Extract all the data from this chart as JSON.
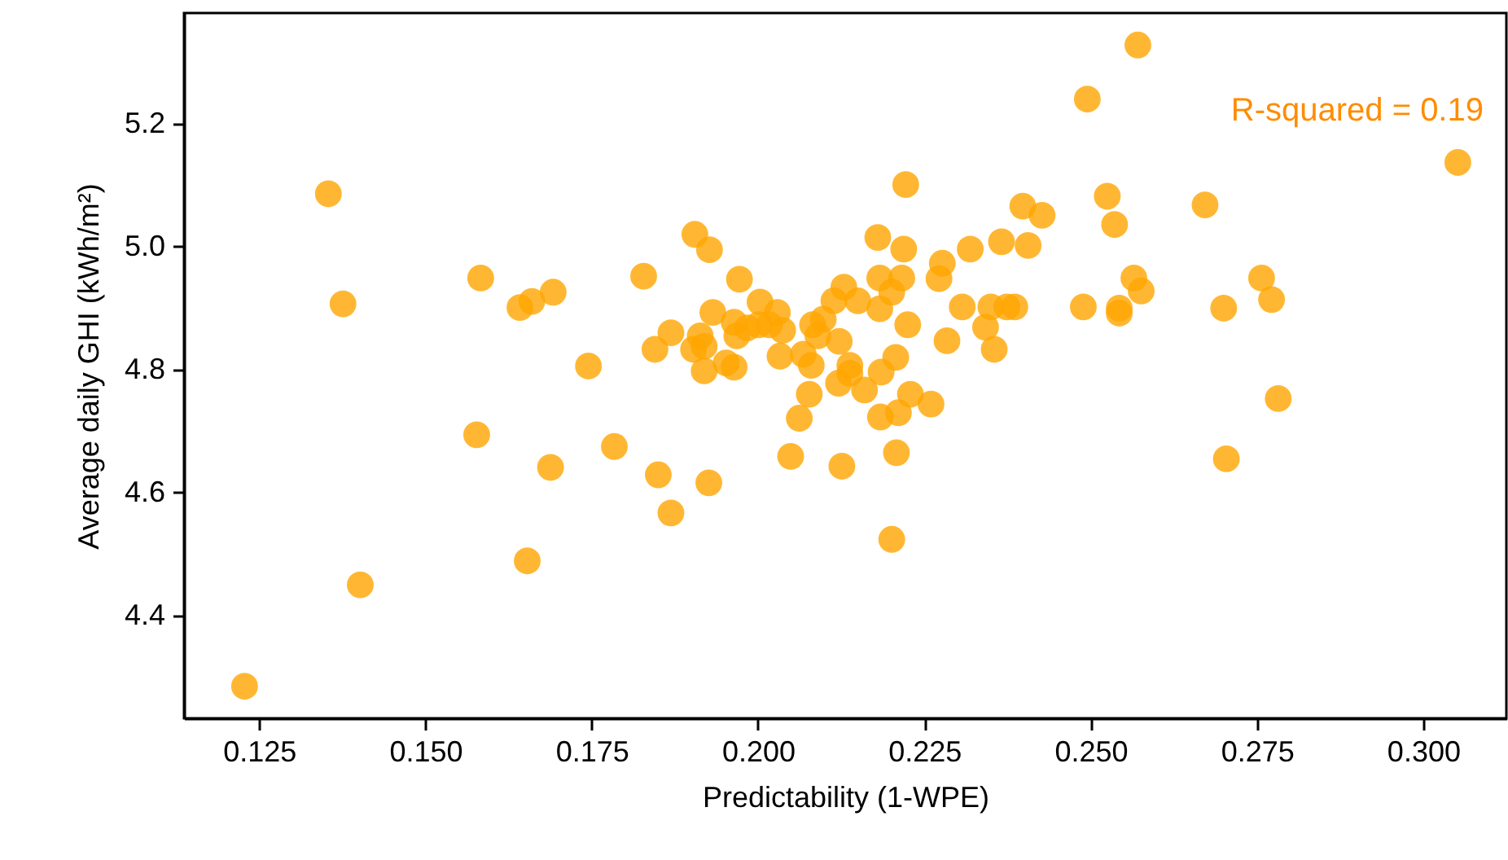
{
  "chart_data": {
    "type": "scatter",
    "xlabel": "Predictability (1-WPE)",
    "ylabel": "Average daily GHI (kWh/m²)",
    "annotations": [
      "R-squared = 0.19"
    ],
    "xlim": [
      0.1137,
      0.3125
    ],
    "ylim": [
      4.233,
      5.38
    ],
    "xticks": [
      0.125,
      {
        "value": 0.15,
        "label": "0.150"
      },
      0.175,
      {
        "value": 0.2,
        "label": "0.200"
      },
      0.225,
      {
        "value": 0.25,
        "label": "0.250"
      },
      0.275,
      {
        "value": 0.3,
        "label": "0.300"
      }
    ],
    "yticks": [
      4.4,
      4.6,
      4.8,
      {
        "value": 5,
        "label": "5.0"
      },
      5.2
    ],
    "grid": false,
    "marker": "circle",
    "series": [
      {
        "color": "#ffa500",
        "x": [
          0.1354,
          0.1376,
          0.1583,
          0.1642,
          0.166,
          0.1692,
          0.1828,
          0.1869,
          0.1845,
          0.1745,
          0.1577,
          0.1688,
          0.1784,
          0.185,
          0.1869,
          0.1653,
          0.1402,
          0.1228,
          0.1926,
          0.2049,
          0.2126,
          0.2208,
          0.2201,
          0.2062,
          0.2077,
          0.2121,
          0.216,
          0.2184,
          0.2211,
          0.2229,
          0.226,
          0.2207,
          0.2185,
          0.2138,
          0.2138,
          0.2225,
          0.2284,
          0.2355,
          0.2342,
          0.2307,
          0.235,
          0.2374,
          0.2386,
          0.2489,
          0.2543,
          0.2543,
          0.2565,
          0.2576,
          0.2272,
          0.2277,
          0.2319,
          0.2366,
          0.2406,
          0.2398,
          0.2427,
          0.2495,
          0.2525,
          0.2536,
          0.2222,
          0.218,
          0.2219,
          0.2183,
          0.2216,
          0.2201,
          0.2183,
          0.215,
          0.2129,
          0.2114,
          0.2098,
          0.2082,
          0.209,
          0.2122,
          0.2068,
          0.208,
          0.2033,
          0.2037,
          0.2029,
          0.2003,
          0.2017,
          0.2001,
          0.1984,
          0.1968,
          0.1964,
          0.1972,
          0.1932,
          0.1905,
          0.1927,
          0.1913,
          0.1903,
          0.1919,
          0.1952,
          0.1964,
          0.1919,
          0.2571,
          0.2672,
          0.3052,
          0.27,
          0.2757,
          0.2772,
          0.2782,
          0.2704
        ],
        "values": [
          5.086,
          4.907,
          4.949,
          4.901,
          4.911,
          4.926,
          4.952,
          4.86,
          4.833,
          4.806,
          4.694,
          4.641,
          4.675,
          4.629,
          4.567,
          4.489,
          4.45,
          4.285,
          4.616,
          4.659,
          4.643,
          4.665,
          4.524,
          4.721,
          4.76,
          4.778,
          4.767,
          4.723,
          4.73,
          4.76,
          4.744,
          4.82,
          4.796,
          4.807,
          4.794,
          4.873,
          4.847,
          4.833,
          4.869,
          4.902,
          4.902,
          4.902,
          4.902,
          4.902,
          4.892,
          4.9,
          4.949,
          4.928,
          4.948,
          4.973,
          4.996,
          5.008,
          5.002,
          5.066,
          5.051,
          5.24,
          5.082,
          5.036,
          5.101,
          5.015,
          4.996,
          4.949,
          4.949,
          4.926,
          4.899,
          4.912,
          4.934,
          4.912,
          4.882,
          4.873,
          4.855,
          4.846,
          4.825,
          4.807,
          4.822,
          4.864,
          4.893,
          4.91,
          4.873,
          4.873,
          4.868,
          4.855,
          4.877,
          4.947,
          4.893,
          5.02,
          4.995,
          4.855,
          4.833,
          4.798,
          4.811,
          4.804,
          4.838,
          5.328,
          5.068,
          5.137,
          4.9,
          4.949,
          4.914,
          4.753,
          4.655
        ]
      }
    ]
  }
}
